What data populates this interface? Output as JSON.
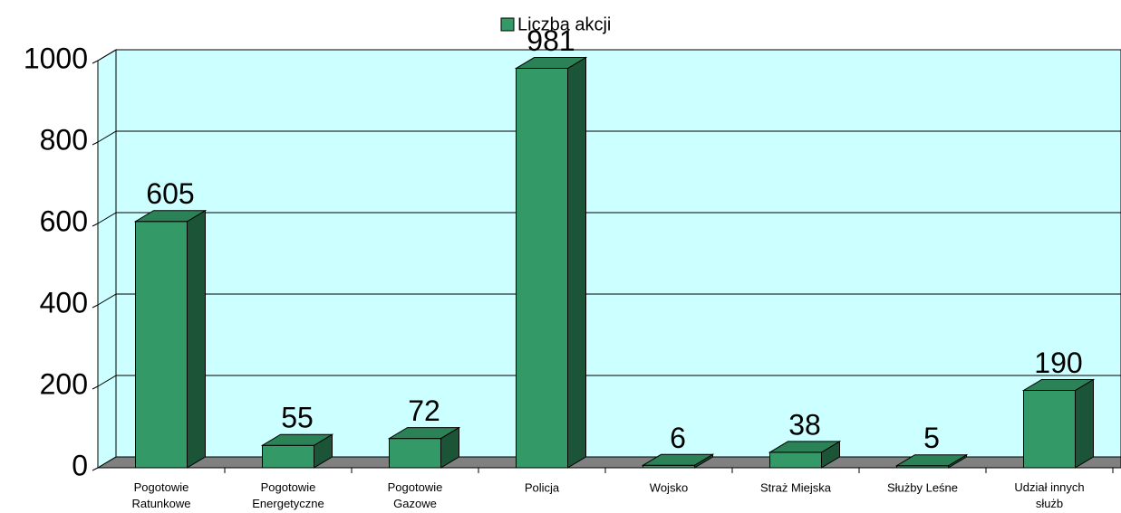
{
  "chart_data": {
    "type": "bar3d",
    "categories": [
      "Pogotowie Ratunkowe",
      "Pogotowie Energetyczne",
      "Pogotowie Gazowe",
      "Policja",
      "Wojsko",
      "Straż Miejska",
      "Służby Leśne",
      "Udział innych służb"
    ],
    "series": [
      {
        "name": "Liczba akcji",
        "color": "#339966",
        "values": [
          605,
          55,
          72,
          981,
          6,
          38,
          5,
          190
        ]
      }
    ],
    "ylim": [
      0,
      1000
    ],
    "yticks": [
      0,
      200,
      400,
      600,
      800,
      1000
    ],
    "grid": true,
    "legend": "top"
  }
}
